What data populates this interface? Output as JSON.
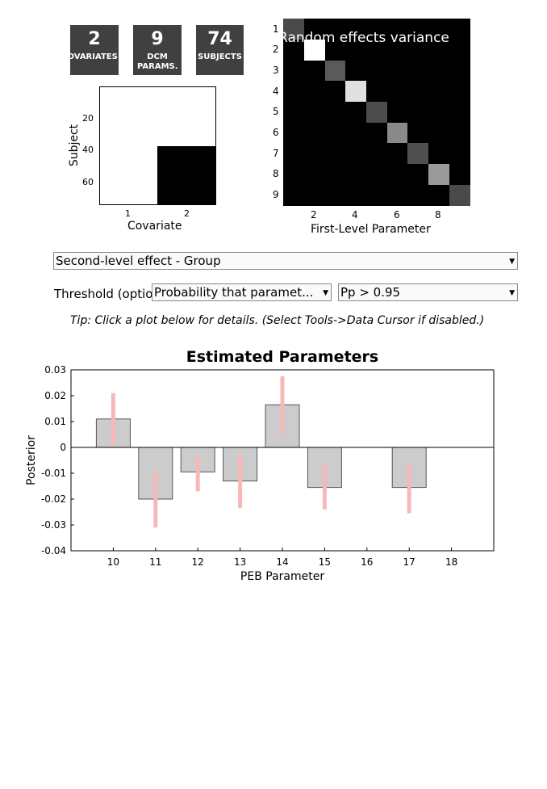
{
  "tiles": [
    {
      "value": "2",
      "label": "COVARIATES"
    },
    {
      "value": "9",
      "label": "DCM PARAMS."
    },
    {
      "value": "74",
      "label": "SUBJECTS"
    }
  ],
  "design_matrix": {
    "xlabel": "Covariate",
    "ylabel": "Subject",
    "x_ticks": [
      "1",
      "2"
    ],
    "y_ticks": [
      "20",
      "40",
      "60"
    ]
  },
  "variance_plot": {
    "title": "Random effects variance",
    "xlabel": "First-Level Parameter",
    "x_ticks": [
      "2",
      "4",
      "6",
      "8"
    ],
    "y_ticks": [
      "1",
      "2",
      "3",
      "4",
      "5",
      "6",
      "7",
      "8",
      "9"
    ]
  },
  "controls": {
    "effect_select": "Second-level effect - Group",
    "threshold_label": "Threshold (optional):",
    "threshold_type_select": "Probability that paramet...",
    "threshold_value_select": "Pp > 0.95",
    "tip": "Tip: Click a plot below for details. (Select Tools->Data Cursor if disabled.)"
  },
  "chart_data": {
    "type": "bar",
    "title": "Estimated Parameters",
    "xlabel": "PEB Parameter",
    "ylabel": "Posterior",
    "categories": [
      "10",
      "11",
      "12",
      "13",
      "14",
      "15",
      "16",
      "17",
      "18"
    ],
    "values": [
      0.011,
      -0.02,
      -0.0095,
      -0.013,
      0.0165,
      -0.0155,
      0.0,
      -0.0155,
      0.0
    ],
    "error_bars": [
      [
        0.001,
        0.021
      ],
      [
        -0.031,
        -0.0095
      ],
      [
        -0.017,
        -0.0025
      ],
      [
        -0.0235,
        -0.0025
      ],
      [
        0.005,
        0.0275
      ],
      [
        -0.024,
        -0.007
      ],
      null,
      [
        -0.0255,
        -0.006
      ],
      null
    ],
    "ylim": [
      -0.04,
      0.03
    ],
    "y_ticks": [
      "0.03",
      "0.02",
      "0.01",
      "0",
      "-0.01",
      "-0.02",
      "-0.03",
      "-0.04"
    ],
    "bar_color": "#cccccc",
    "error_color": "#f7b8b8"
  }
}
